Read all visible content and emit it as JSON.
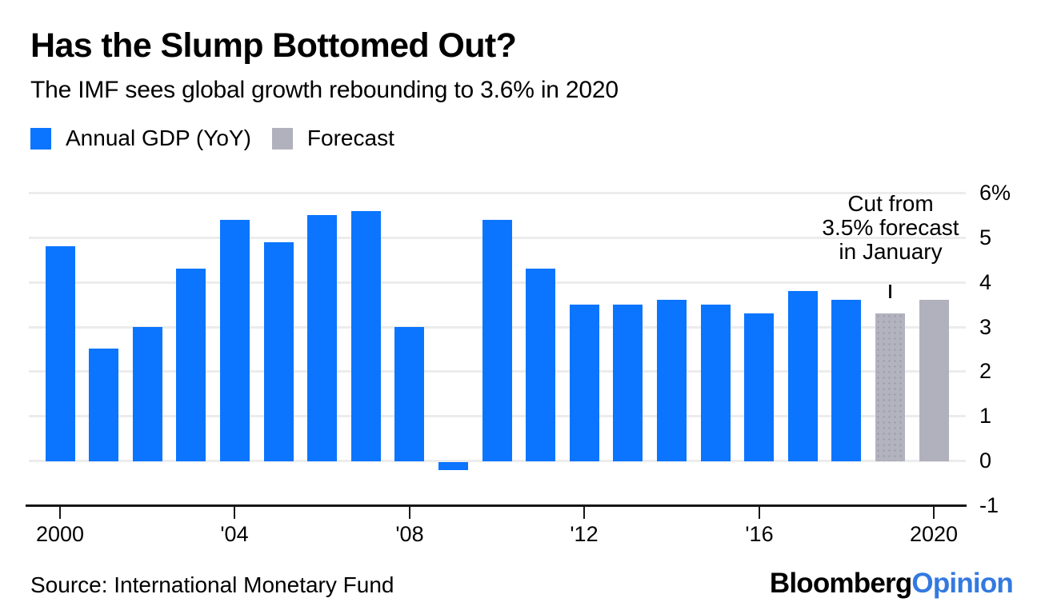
{
  "header": {
    "title": "Has the Slump Bottomed Out?",
    "subtitle": "The IMF sees global growth rebounding to 3.6% in 2020"
  },
  "legend": [
    {
      "label": "Annual GDP (YoY)",
      "color": "#0b75ff"
    },
    {
      "label": "Forecast",
      "color": "#b1b1bd"
    }
  ],
  "chart_data": {
    "type": "bar",
    "title": "Has the Slump Bottomed Out?",
    "subtitle": "The IMF sees global growth rebounding to 3.6% in 2020",
    "categories": [
      2000,
      2001,
      2002,
      2003,
      2004,
      2005,
      2006,
      2007,
      2008,
      2009,
      2010,
      2011,
      2012,
      2013,
      2014,
      2015,
      2016,
      2017,
      2018,
      2019,
      2020
    ],
    "series": [
      {
        "name": "Annual GDP (YoY)",
        "color": "#0b75ff",
        "values": [
          4.8,
          2.5,
          3.0,
          4.3,
          5.4,
          4.9,
          5.5,
          5.6,
          3.0,
          -0.1,
          5.4,
          4.3,
          3.5,
          3.5,
          3.6,
          3.5,
          3.3,
          3.8,
          3.6,
          null,
          null
        ]
      },
      {
        "name": "Forecast",
        "color": "#b1b1bd",
        "textured_year": 2019,
        "values": [
          null,
          null,
          null,
          null,
          null,
          null,
          null,
          null,
          null,
          null,
          null,
          null,
          null,
          null,
          null,
          null,
          null,
          null,
          null,
          3.3,
          3.6
        ]
      }
    ],
    "ylim": [
      -1,
      6
    ],
    "y_unit": "%",
    "yticks": {
      "values": [
        6,
        5,
        4,
        3,
        2,
        1,
        0,
        -1
      ],
      "labels": [
        "6%",
        "5",
        "4",
        "3",
        "2",
        "1",
        "0",
        "-1"
      ]
    },
    "xticks": {
      "values": [
        2000,
        2004,
        2008,
        2012,
        2016,
        2020
      ],
      "labels": [
        "2000",
        "'04",
        "'08",
        "'12",
        "'16",
        "2020"
      ]
    },
    "grid": "horizontal-light",
    "legend_position": "top-left",
    "annotation": {
      "text": "Cut from 3.5% forecast in January",
      "target_year": 2019
    }
  },
  "annotation": {
    "lines": [
      "Cut from",
      "3.5% forecast",
      "in January"
    ]
  },
  "footer": {
    "source": "Source: International Monetary Fund",
    "brand": "Bloomberg",
    "brand_suffix": "Opinion",
    "brand_suffix_color": "#3379e0"
  }
}
